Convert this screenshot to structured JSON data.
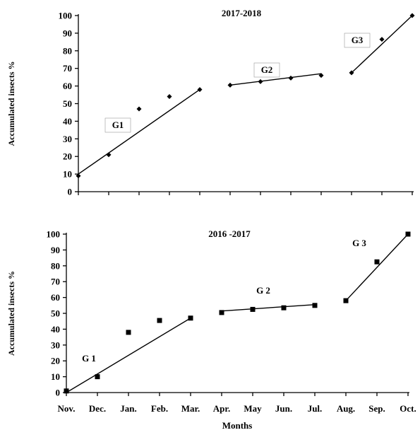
{
  "chart_data": [
    {
      "type": "scatter",
      "title": "2017-2018",
      "ylabel": "Accumulated insects %",
      "xlabel": "",
      "ylim": [
        0,
        100
      ],
      "yticks": [
        "0",
        "10",
        "20",
        "30",
        "40",
        "50",
        "60",
        "70",
        "80",
        "90",
        "100"
      ],
      "x_labels": [],
      "marker": "diamond",
      "x": [
        0,
        1,
        2,
        3,
        4,
        5,
        6,
        7,
        8,
        9,
        10,
        11
      ],
      "y": [
        9,
        21,
        47,
        54,
        58,
        60.5,
        62.5,
        64.5,
        66,
        67.5,
        86.5,
        100
      ],
      "groups": [
        {
          "name": "G1",
          "line": [
            [
              0,
              10
            ],
            [
              4,
              58
            ]
          ]
        },
        {
          "name": "G2",
          "line": [
            [
              5,
              60.5
            ],
            [
              8,
              67
            ]
          ]
        },
        {
          "name": "G3",
          "line": [
            [
              9,
              67.5
            ],
            [
              11,
              100
            ]
          ]
        }
      ],
      "grid": false
    },
    {
      "type": "scatter",
      "title": "2016 -2017",
      "ylabel": "Accumulated insects %",
      "xlabel": "Months",
      "ylim": [
        0,
        100
      ],
      "yticks": [
        "0",
        "10",
        "20",
        "30",
        "40",
        "50",
        "60",
        "70",
        "80",
        "90",
        "100"
      ],
      "x_labels": [
        "Nov.",
        "Dec.",
        "Jan.",
        "Feb.",
        "Mar.",
        "Apr.",
        "May",
        "Jun.",
        "Jul.",
        "Aug.",
        "Sep.",
        "Oct."
      ],
      "marker": "square",
      "x": [
        0,
        1,
        2,
        3,
        4,
        5,
        6,
        7,
        8,
        9,
        10,
        11
      ],
      "y": [
        1,
        10,
        38,
        45.5,
        47,
        50.5,
        52.5,
        53.5,
        55,
        58,
        82.5,
        100
      ],
      "groups": [
        {
          "name": "G 1",
          "line": [
            [
              0,
              0
            ],
            [
              4,
              47
            ]
          ]
        },
        {
          "name": "G 2",
          "line": [
            [
              5,
              51.5
            ],
            [
              8,
              55.5
            ]
          ]
        },
        {
          "name": "G 3",
          "line": [
            [
              9,
              58
            ],
            [
              11,
              100
            ]
          ]
        }
      ],
      "grid": false
    }
  ]
}
